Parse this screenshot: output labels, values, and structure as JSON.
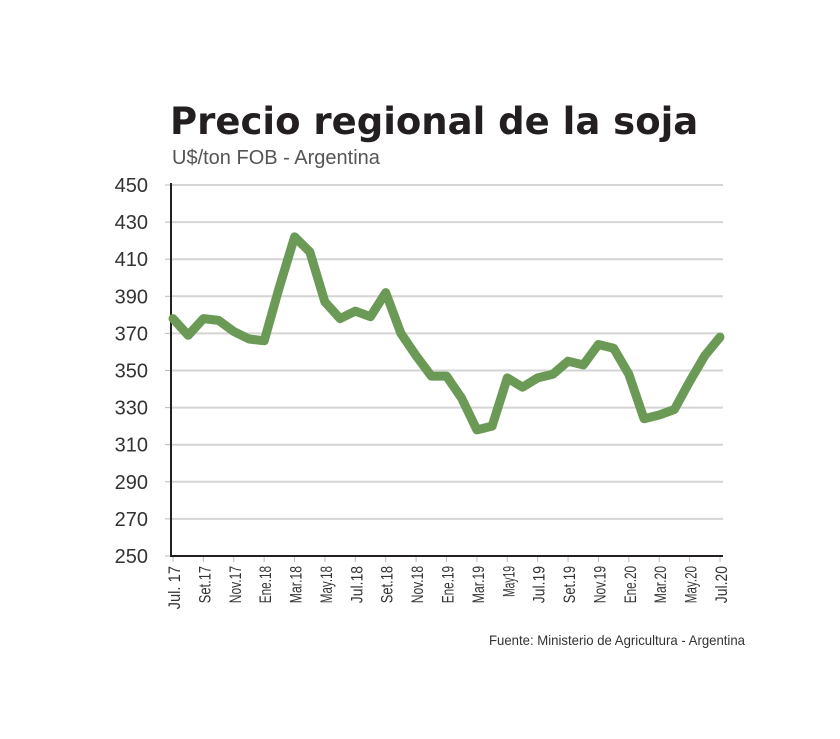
{
  "chart_data": {
    "type": "line",
    "title": "Precio regional de la soja",
    "subtitle": "U$/ton FOB - Argentina",
    "source": "Fuente: Ministerio de Agricultura - Argentina",
    "xlabel": "",
    "ylabel": "",
    "ylim": [
      250,
      450
    ],
    "yticks": [
      450,
      430,
      410,
      390,
      370,
      350,
      330,
      310,
      290,
      270,
      250
    ],
    "xtick_labels": [
      "Jul. 17",
      "Set.17",
      "Nov.17",
      "Ene.18",
      "Mar.18",
      "May.18",
      "Jul.18",
      "Set.18",
      "Nov.18",
      "Ene.19",
      "Mar.19",
      "May19",
      "Jul.19",
      "Set.19",
      "Nov.19",
      "Ene.20",
      "Mar.20",
      "May.20",
      "Jul.20"
    ],
    "x_start": "Jul 2017",
    "x_end": "Jul 2020",
    "frequency": "monthly",
    "grid": "horizontal",
    "legend": "none",
    "series": [
      {
        "values": [
          378,
          369,
          378,
          377,
          371,
          367,
          366,
          395,
          422,
          414,
          387,
          378,
          382,
          379,
          392,
          370,
          358,
          347,
          347,
          335,
          318,
          320,
          346,
          341,
          346,
          348,
          355,
          353,
          364,
          362,
          348,
          324,
          326,
          329,
          344,
          358,
          368
        ],
        "color": "#6a9a55"
      }
    ]
  }
}
